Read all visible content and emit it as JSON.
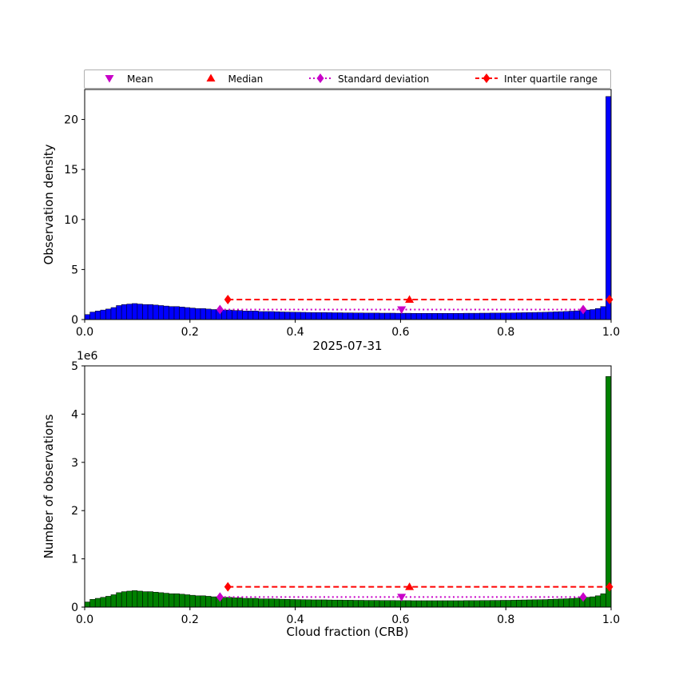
{
  "figure": {
    "background": "#ffffff"
  },
  "legend": {
    "items": [
      {
        "label": "Mean",
        "marker": "triangle-down",
        "color": "#c800c8",
        "line": "none"
      },
      {
        "label": "Median",
        "marker": "triangle-up",
        "color": "#ff0000",
        "line": "none"
      },
      {
        "label": "Standard deviation",
        "marker": "diamond",
        "color": "#c800c8",
        "line": "dotted"
      },
      {
        "label": "Inter quartile range",
        "marker": "diamond",
        "color": "#ff0000",
        "line": "dashed"
      }
    ]
  },
  "chart_data": [
    {
      "type": "bar",
      "title": "",
      "xlabel": "",
      "ylabel": "Observation density",
      "xlim": [
        0,
        1
      ],
      "ylim": [
        0,
        23
      ],
      "xticks": [
        "0.0",
        "0.2",
        "0.4",
        "0.6",
        "0.8",
        "1.0"
      ],
      "yticks": [
        "0",
        "5",
        "10",
        "15",
        "20"
      ],
      "grid": false,
      "bar_color": "#0000ff",
      "bar_edge_color": "#000000",
      "bin_start": 0.0,
      "bin_width": 0.01,
      "values": [
        0.5,
        0.75,
        0.85,
        0.95,
        1.05,
        1.2,
        1.4,
        1.5,
        1.55,
        1.6,
        1.55,
        1.5,
        1.5,
        1.45,
        1.4,
        1.35,
        1.3,
        1.3,
        1.25,
        1.2,
        1.15,
        1.1,
        1.1,
        1.05,
        1.0,
        1.0,
        0.95,
        0.95,
        0.9,
        0.9,
        0.85,
        0.85,
        0.85,
        0.8,
        0.8,
        0.8,
        0.78,
        0.76,
        0.75,
        0.74,
        0.73,
        0.72,
        0.71,
        0.7,
        0.7,
        0.7,
        0.69,
        0.68,
        0.68,
        0.67,
        0.67,
        0.66,
        0.66,
        0.65,
        0.65,
        0.65,
        0.64,
        0.64,
        0.64,
        0.63,
        0.63,
        0.63,
        0.62,
        0.62,
        0.62,
        0.62,
        0.62,
        0.62,
        0.62,
        0.62,
        0.62,
        0.62,
        0.63,
        0.63,
        0.63,
        0.64,
        0.64,
        0.65,
        0.65,
        0.66,
        0.66,
        0.67,
        0.68,
        0.69,
        0.7,
        0.71,
        0.72,
        0.73,
        0.75,
        0.77,
        0.79,
        0.81,
        0.84,
        0.87,
        0.9,
        0.95,
        1.0,
        1.1,
        1.3,
        22.3
      ],
      "overlays": {
        "mean": {
          "x": 0.602,
          "y": 1.0,
          "color": "#c800c8"
        },
        "median": {
          "x": 0.617,
          "y": 2.0,
          "color": "#ff0000"
        },
        "std_range": {
          "x1": 0.257,
          "x2": 0.947,
          "y": 1.0,
          "color": "#c800c8"
        },
        "iqr_range": {
          "x1": 0.272,
          "x2": 0.997,
          "y": 2.0,
          "color": "#ff0000"
        }
      }
    },
    {
      "type": "bar",
      "title": "2025-07-31",
      "xlabel": "Cloud fraction (CRB)",
      "ylabel": "Number of observations",
      "offset_text": "1e6",
      "xlim": [
        0,
        1
      ],
      "ylim": [
        0,
        5
      ],
      "xticks": [
        "0.0",
        "0.2",
        "0.4",
        "0.6",
        "0.8",
        "1.0"
      ],
      "yticks": [
        "0",
        "1",
        "2",
        "3",
        "4",
        "5"
      ],
      "grid": false,
      "bar_color": "#008000",
      "bar_edge_color": "#000000",
      "bin_start": 0.0,
      "bin_width": 0.01,
      "values": [
        0.107,
        0.161,
        0.182,
        0.203,
        0.225,
        0.257,
        0.3,
        0.321,
        0.332,
        0.342,
        0.332,
        0.321,
        0.321,
        0.31,
        0.3,
        0.289,
        0.278,
        0.278,
        0.268,
        0.257,
        0.246,
        0.235,
        0.235,
        0.225,
        0.214,
        0.214,
        0.203,
        0.203,
        0.193,
        0.193,
        0.182,
        0.182,
        0.182,
        0.171,
        0.171,
        0.171,
        0.167,
        0.163,
        0.161,
        0.158,
        0.156,
        0.154,
        0.152,
        0.15,
        0.15,
        0.15,
        0.148,
        0.146,
        0.146,
        0.143,
        0.143,
        0.141,
        0.141,
        0.139,
        0.139,
        0.139,
        0.137,
        0.137,
        0.137,
        0.135,
        0.135,
        0.135,
        0.133,
        0.133,
        0.133,
        0.133,
        0.133,
        0.133,
        0.133,
        0.133,
        0.133,
        0.133,
        0.135,
        0.135,
        0.135,
        0.137,
        0.137,
        0.139,
        0.139,
        0.141,
        0.141,
        0.143,
        0.146,
        0.148,
        0.15,
        0.152,
        0.154,
        0.156,
        0.161,
        0.165,
        0.169,
        0.173,
        0.18,
        0.186,
        0.193,
        0.203,
        0.214,
        0.235,
        0.278,
        4.78
      ],
      "overlays": {
        "mean": {
          "x": 0.602,
          "y": 0.21,
          "color": "#c800c8"
        },
        "median": {
          "x": 0.617,
          "y": 0.42,
          "color": "#ff0000"
        },
        "std_range": {
          "x1": 0.257,
          "x2": 0.947,
          "y": 0.21,
          "color": "#c800c8"
        },
        "iqr_range": {
          "x1": 0.272,
          "x2": 0.997,
          "y": 0.42,
          "color": "#ff0000"
        }
      }
    }
  ]
}
